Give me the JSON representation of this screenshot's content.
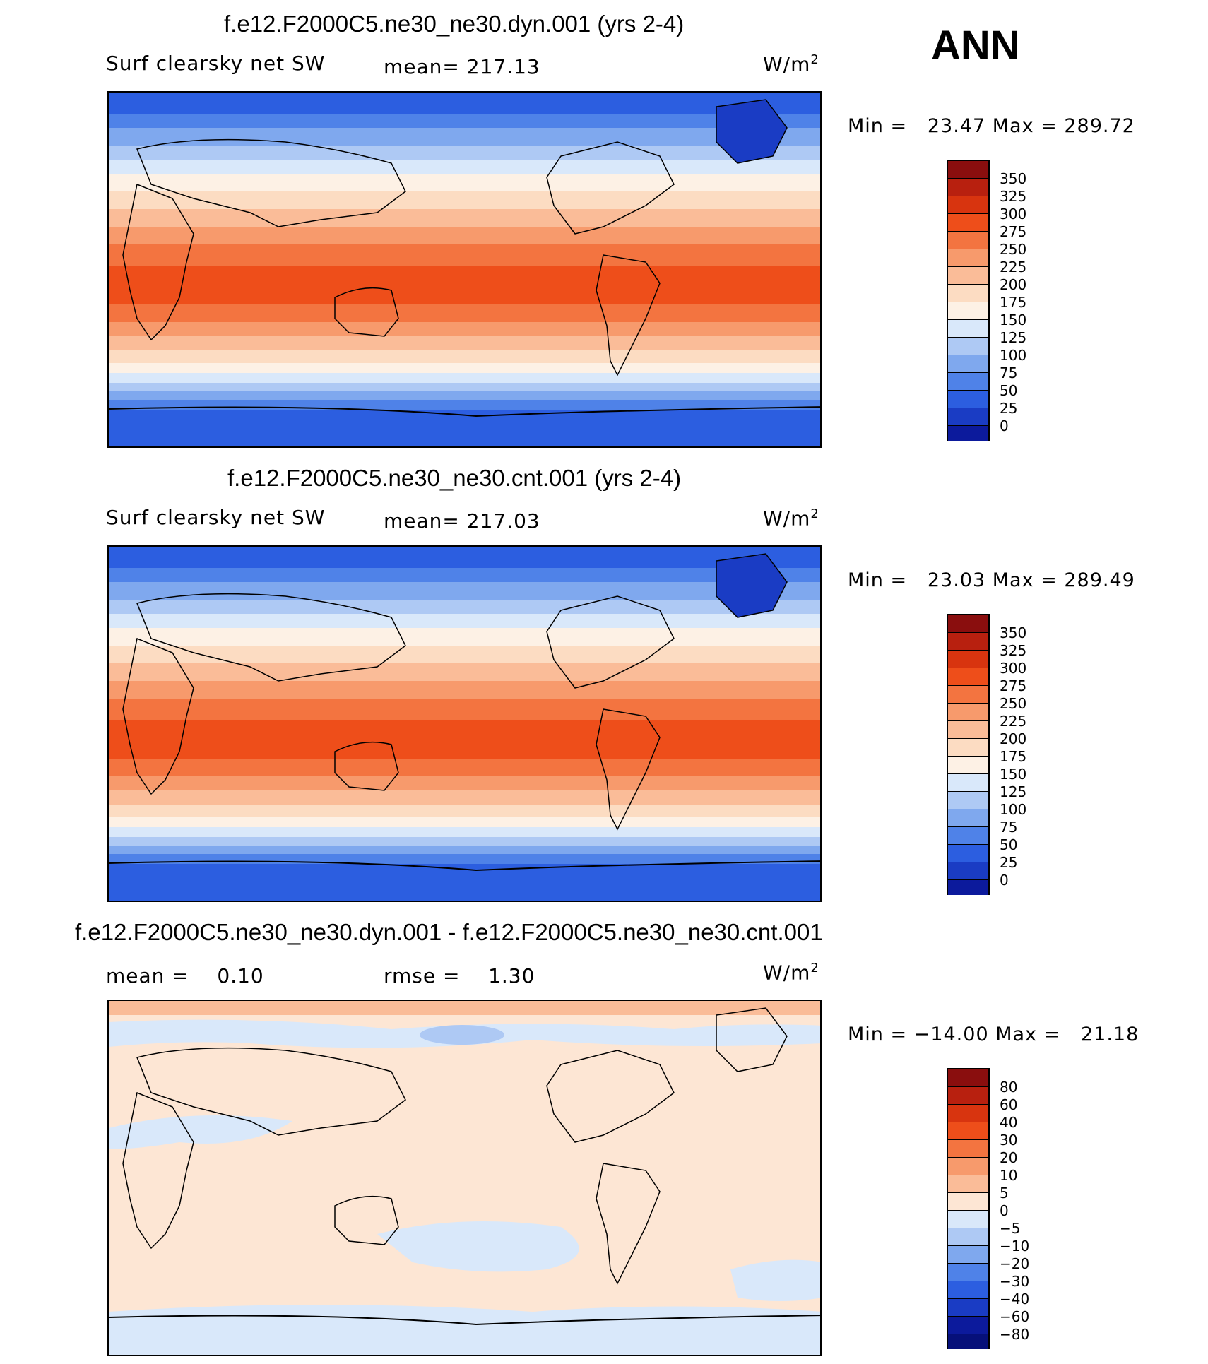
{
  "ann_label": "ANN",
  "units": "W/m",
  "units_exp": "2",
  "panels": [
    {
      "title": "f.e12.F2000C5.ne30_ne30.dyn.001 (yrs 2-4)",
      "left_label": "Surf clearsky net SW",
      "stat_label": "mean= 217.13",
      "minmax": "Min =   23.47 Max = 289.72"
    },
    {
      "title": "f.e12.F2000C5.ne30_ne30.cnt.001 (yrs 2-4)",
      "left_label": "Surf clearsky net SW",
      "stat_label": "mean= 217.03",
      "minmax": "Min =   23.03 Max = 289.49"
    },
    {
      "title": "f.e12.F2000C5.ne30_ne30.dyn.001 - f.e12.F2000C5.ne30_ne30.cnt.001",
      "left_label": "mean =    0.10",
      "stat_label": "rmse =    1.30",
      "minmax": "Min = −14.00 Max =   21.18"
    }
  ],
  "chart_data": [
    {
      "type": "heatmap",
      "title": "f.e12.F2000C5.ne30_ne30.dyn.001 (yrs 2-4)",
      "variable": "Surf clearsky net SW",
      "units": "W/m2",
      "mean": 217.13,
      "min": 23.47,
      "max": 289.72,
      "colorbar_levels": [
        350,
        325,
        300,
        275,
        250,
        225,
        200,
        175,
        150,
        125,
        100,
        75,
        50,
        25,
        0
      ],
      "colorbar_colors": [
        "#8a0e0e",
        "#b8200f",
        "#d8340f",
        "#ee4e1a",
        "#f37440",
        "#f79a6c",
        "#fabc98",
        "#fcdcc2",
        "#fdf1e5",
        "#d9e8fa",
        "#aec9f4",
        "#7fa8ee",
        "#4f82e8",
        "#2c5ee0",
        "#1a3cc4",
        "#0c1a9c"
      ]
    },
    {
      "type": "heatmap",
      "title": "f.e12.F2000C5.ne30_ne30.cnt.001 (yrs 2-4)",
      "variable": "Surf clearsky net SW",
      "units": "W/m2",
      "mean": 217.03,
      "min": 23.03,
      "max": 289.49,
      "colorbar_levels": [
        350,
        325,
        300,
        275,
        250,
        225,
        200,
        175,
        150,
        125,
        100,
        75,
        50,
        25,
        0
      ],
      "colorbar_colors": [
        "#8a0e0e",
        "#b8200f",
        "#d8340f",
        "#ee4e1a",
        "#f37440",
        "#f79a6c",
        "#fabc98",
        "#fcdcc2",
        "#fdf1e5",
        "#d9e8fa",
        "#aec9f4",
        "#7fa8ee",
        "#4f82e8",
        "#2c5ee0",
        "#1a3cc4",
        "#0c1a9c"
      ]
    },
    {
      "type": "heatmap",
      "title": "f.e12.F2000C5.ne30_ne30.dyn.001 - f.e12.F2000C5.ne30_ne30.cnt.001",
      "units": "W/m2",
      "mean": 0.1,
      "rmse": 1.3,
      "min": -14.0,
      "max": 21.18,
      "colorbar_levels": [
        "80",
        "60",
        "40",
        "30",
        "20",
        "10",
        "5",
        "0",
        "−5",
        "−10",
        "−20",
        "−30",
        "−40",
        "−60",
        "−80"
      ],
      "colorbar_colors": [
        "#8a0e0e",
        "#b8200f",
        "#d8340f",
        "#ee4e1a",
        "#f37440",
        "#f79a6c",
        "#fabc98",
        "#fde6d4",
        "#d9e8fa",
        "#aec9f4",
        "#7fa8ee",
        "#4f82e8",
        "#2c5ee0",
        "#1a3cc4",
        "#0c1a9c",
        "#06107a"
      ]
    }
  ]
}
